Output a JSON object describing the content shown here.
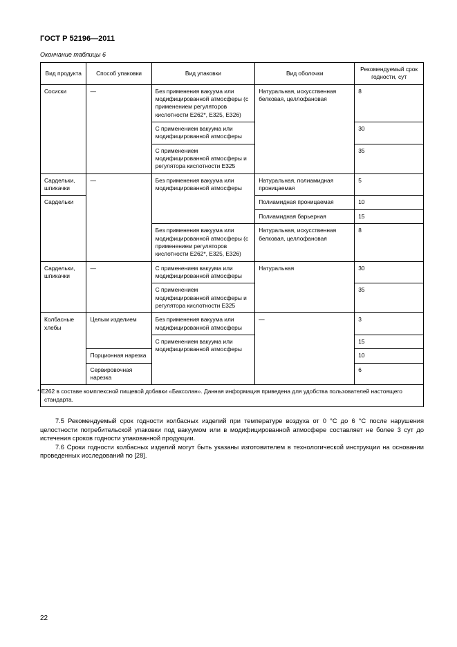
{
  "header": "ГОСТ Р 52196—2011",
  "caption": "Окончание таблицы 6",
  "columns": {
    "product": "Вид продукта",
    "method": "Способ упаковки",
    "packing": "Вид упаковки",
    "shell": "Вид оболочки",
    "shelf": "Рекомендуемый срок годности, сут"
  },
  "rows": [
    {
      "product": "Сосиски",
      "method": "—",
      "packing": "Без применения вакуума или модифицированной атмосферы (с применением регуляторов кислотности Е262*, Е325, Е326)",
      "shell": "Натуральная, искусственная белковая, целлофановая",
      "shelf": "8"
    },
    {
      "packing": "С применением вакуума или модифицированной атмосферы",
      "shelf": "30"
    },
    {
      "packing": "С применением модифицированной атмосферы и регулятора кислотности Е325",
      "shelf": "35"
    },
    {
      "product": "Сардельки, шпикачки",
      "method": "—",
      "packing": "Без применения вакуума или модифицированной атмосферы",
      "shell": "Натуральная, полиамидная проницаемая",
      "shelf": "5"
    },
    {
      "product": "Сардельки",
      "shell": "Полиамидная проницаемая",
      "shelf": "10"
    },
    {
      "shell": "Полиамидная барьерная",
      "shelf": "15"
    },
    {
      "packing": "Без применения вакуума или модифицированной атмосферы (с применением регуляторов кислотности Е262*, Е325, Е326)",
      "shell": "Натуральная, искусственная белковая, целлофановая",
      "shelf": "8"
    },
    {
      "product": "Сардельки, шпикачки",
      "method": "—",
      "packing": "С применением вакуума или модифицированной атмосферы",
      "shell": "Натуральная",
      "shelf": "30"
    },
    {
      "packing": "С применением модифицированной атмосферы и регулятора кислотности Е325",
      "shelf": "35"
    },
    {
      "product": "Колбасные хлебы",
      "method": "Целым изделием",
      "packing": "Без применения вакуума или модифицированной атмосферы",
      "shell": "—",
      "shelf": "3"
    },
    {
      "packing": "С применением вакуума или модифицированной атмосферы",
      "shelf": "15"
    },
    {
      "method": "Порционная нарезка",
      "shelf": "10"
    },
    {
      "method": "Сервировочная нарезка",
      "shelf": "6"
    }
  ],
  "footnote": "* Е262 в составе комплексной пищевой добавки «Баксолан». Данная информация приведена для удобства пользователей настоящего стандарта.",
  "paragraphs": [
    "7.5 Рекомендуемый срок годности колбасных изделий при температуре воздуха от 0 °С до 6 °С после нарушения целостности потребительской упаковки под вакуумом или в модифицированной атмосфере составляет не более 3 сут до истечения сроков годности упакованной продукции.",
    "7.6 Сроки годности колбасных изделий могут быть указаны изготовителем в технологической инструкции на основании проведенных исследований по [28]."
  ],
  "pageNumber": "22"
}
